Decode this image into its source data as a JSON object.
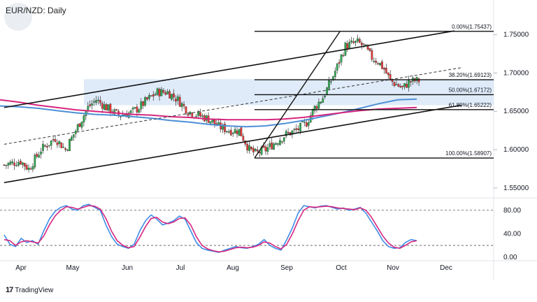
{
  "header": {
    "title": "EUR/NZD: Daily"
  },
  "branding": {
    "label": "TradingView"
  },
  "chart_data": [
    {
      "type": "candlestick",
      "title": "EUR/NZD: Daily",
      "y_ticks": [
        "1.75000",
        "1.70000",
        "1.65000",
        "1.60000",
        "1.55000"
      ],
      "ylim": [
        1.538,
        1.788
      ],
      "x_ticks": [
        "Apr",
        "May",
        "Jun",
        "Jul",
        "Aug",
        "Sep",
        "Oct",
        "Nov",
        "Dec"
      ],
      "fibonacci": [
        {
          "label": "0.00%(1.75437)",
          "value": 1.75437
        },
        {
          "label": "38.20%(1.69123)",
          "value": 1.69123
        },
        {
          "label": "50.00%(1.67172)",
          "value": 1.67172
        },
        {
          "label": "61.80%(1.65222)",
          "value": 1.65222
        },
        {
          "label": "100.00%(1.58907)",
          "value": 1.58907
        }
      ],
      "zone": {
        "from": 1.658,
        "to": 1.692
      },
      "closes_keyframes": [
        [
          0,
          1.58
        ],
        [
          8,
          1.585
        ],
        [
          12,
          1.575
        ],
        [
          18,
          1.6
        ],
        [
          25,
          1.615
        ],
        [
          30,
          1.6
        ],
        [
          35,
          1.625
        ],
        [
          38,
          1.64
        ],
        [
          41,
          1.655
        ],
        [
          45,
          1.665
        ],
        [
          50,
          1.655
        ],
        [
          56,
          1.645
        ],
        [
          62,
          1.648
        ],
        [
          66,
          1.655
        ],
        [
          70,
          1.665
        ],
        [
          75,
          1.675
        ],
        [
          80,
          1.675
        ],
        [
          85,
          1.665
        ],
        [
          90,
          1.65
        ],
        [
          95,
          1.645
        ],
        [
          100,
          1.64
        ],
        [
          105,
          1.63
        ],
        [
          110,
          1.625
        ],
        [
          115,
          1.625
        ],
        [
          120,
          1.6
        ],
        [
          123,
          1.595
        ],
        [
          128,
          1.6
        ],
        [
          133,
          1.61
        ],
        [
          138,
          1.62
        ],
        [
          143,
          1.625
        ],
        [
          148,
          1.635
        ],
        [
          152,
          1.655
        ],
        [
          156,
          1.668
        ],
        [
          160,
          1.69
        ],
        [
          164,
          1.715
        ],
        [
          167,
          1.735
        ],
        [
          170,
          1.738
        ],
        [
          173,
          1.74
        ],
        [
          176,
          1.735
        ],
        [
          180,
          1.72
        ],
        [
          183,
          1.715
        ],
        [
          186,
          1.705
        ],
        [
          189,
          1.69
        ],
        [
          192,
          1.685
        ],
        [
          195,
          1.68
        ],
        [
          198,
          1.688
        ],
        [
          201,
          1.69
        ],
        [
          203,
          1.69
        ]
      ],
      "series_lines": [
        {
          "name": "",
          "color": "#4d8fd6",
          "values": [
            1.657,
            1.656,
            1.654,
            1.651,
            1.648,
            1.646,
            1.645,
            1.643,
            1.641,
            1.638,
            1.636,
            1.633,
            1.631,
            1.63,
            1.631,
            1.634,
            1.638,
            1.643,
            1.648,
            1.654,
            1.66,
            1.665,
            1.666
          ]
        },
        {
          "name": "",
          "color": "#d6267f",
          "values": [
            1.665,
            1.662,
            1.658,
            1.655,
            1.652,
            1.65,
            1.648,
            1.646,
            1.645,
            1.643,
            1.642,
            1.64,
            1.639,
            1.639,
            1.639,
            1.64,
            1.642,
            1.645,
            1.648,
            1.651,
            1.653,
            1.654,
            1.655
          ]
        }
      ]
    },
    {
      "type": "line",
      "title": "",
      "y_ticks": [
        "80.00",
        "40.00",
        "0.00"
      ],
      "ylim": [
        -5,
        100
      ],
      "reference_levels": [
        80,
        20
      ],
      "series": [
        {
          "name": "",
          "color": "#3d8ce8",
          "values": [
            38,
            22,
            18,
            32,
            25,
            28,
            22,
            45,
            65,
            78,
            85,
            88,
            82,
            80,
            88,
            90,
            85,
            80,
            55,
            35,
            22,
            18,
            15,
            22,
            45,
            62,
            72,
            65,
            55,
            58,
            62,
            70,
            65,
            45,
            25,
            15,
            12,
            10,
            8,
            12,
            15,
            18,
            16,
            15,
            18,
            22,
            30,
            20,
            15,
            12,
            30,
            50,
            75,
            88,
            86,
            84,
            87,
            88,
            85,
            82,
            84,
            80,
            82,
            85,
            75,
            60,
            45,
            28,
            18,
            15,
            16,
            25,
            30,
            28
          ]
        },
        {
          "name": "",
          "color": "#d6267f",
          "values": [
            30,
            28,
            20,
            26,
            28,
            26,
            24,
            36,
            55,
            70,
            80,
            86,
            85,
            82,
            85,
            88,
            87,
            82,
            66,
            44,
            28,
            20,
            16,
            18,
            34,
            52,
            66,
            68,
            60,
            57,
            60,
            66,
            67,
            55,
            35,
            20,
            14,
            11,
            9,
            10,
            13,
            16,
            17,
            16,
            17,
            20,
            26,
            24,
            18,
            14,
            22,
            40,
            62,
            80,
            86,
            85,
            86,
            87,
            86,
            84,
            83,
            82,
            81,
            84,
            80,
            68,
            52,
            36,
            24,
            17,
            15,
            20,
            26,
            28
          ]
        }
      ]
    }
  ]
}
